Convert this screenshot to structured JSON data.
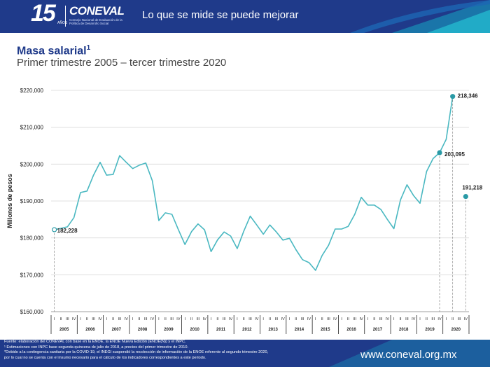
{
  "header": {
    "logo_number": "15",
    "logo_years": "AÑOS",
    "logo_name": "CONEVAL",
    "logo_subtitle": "Consejo Nacional de Evaluación de la Política de Desarrollo Social",
    "slogan": "Lo que se mide se puede mejorar"
  },
  "colors": {
    "brand_blue": "#1f3a8a",
    "series": "#4ab8c1",
    "point": "#2a9aa6"
  },
  "chart_data": {
    "type": "line",
    "title": "Masa salarial",
    "title_sup": "1",
    "subtitle": "Primer trimestre 2005 – tercer trimestre 2020",
    "ylabel": "Millones de pesos",
    "ylim": [
      160000,
      220000
    ],
    "yticks": [
      "$160,000",
      "$170,000",
      "$180,000",
      "$190,000",
      "$200,000",
      "$210,000",
      "$220,000"
    ],
    "quarter_labels": [
      "I",
      "II",
      "III",
      "IV"
    ],
    "years": [
      "2005",
      "2006",
      "2007",
      "2008",
      "2009",
      "2010",
      "2011",
      "2012",
      "2013",
      "2014",
      "2015",
      "2016",
      "2017",
      "2018",
      "2019",
      "2020"
    ],
    "series": [
      {
        "values": [
          182228,
          182600,
          183000,
          185500,
          192300,
          192700,
          197000,
          200500,
          197000,
          197200,
          202300,
          200500,
          198800,
          199700,
          200300,
          195500,
          184700,
          186800,
          186400,
          182200,
          178200,
          181700,
          183800,
          182200,
          176300,
          179500,
          181600,
          180500,
          177100,
          181800,
          185900,
          183500,
          181000,
          183500,
          181600,
          179400,
          179900,
          176800,
          174100,
          173300,
          171200,
          175200,
          178000,
          182400,
          182400,
          183100,
          186400,
          191000,
          188900,
          188900,
          187700,
          185000,
          182500,
          190300,
          194400,
          191500,
          189400,
          198000,
          201500,
          203095,
          206700,
          218346
        ]
      }
    ],
    "highlight_points": [
      {
        "label": "182,228",
        "value": 182228
      },
      {
        "label": "203,095",
        "value": 203095
      },
      {
        "label": "218,346",
        "value": 218346
      },
      {
        "label": "191,218",
        "value": 191218
      }
    ]
  },
  "footer": {
    "notes": [
      "Fuente: elaboración del CONEVAL con base en la ENOE, la ENOE Nueva Edición (ENOE(N)) y el INPC.",
      "¹ Estimaciones con INPC base segunda quincena de julio de 2018, a precios del primer trimestre de 2010.",
      "*Debido a la contingencia sanitaria por la COVID-19, el INEGI suspendió la recolección de información de la ENOE referente al segundo trimestre 2020,",
      "por lo cual no se cuenta con el insumo necesario para el cálculo de los indicadores correspondientes a este periodo."
    ],
    "website": "www.coneval.org.mx"
  }
}
